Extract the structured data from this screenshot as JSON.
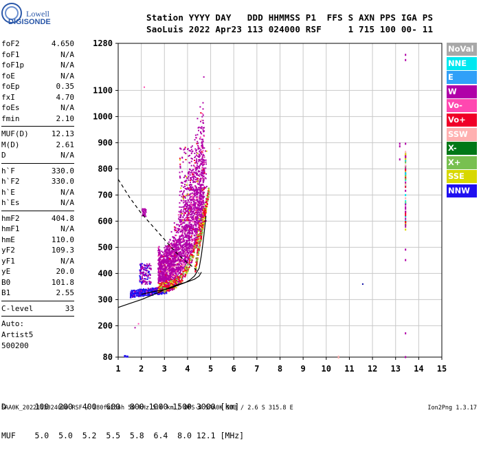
{
  "logo": {
    "line1": "Lowell",
    "line2": "DIGISONDE"
  },
  "header": {
    "line1": "Station YYYY DAY   DDD HHMMSS P1  FFS S AXN PPS IGA PS",
    "line2": "SaoLuis 2022 Apr23 113 024000 RSF     1 715 100 00- 11"
  },
  "params": {
    "group1": [
      {
        "k": "foF2",
        "v": "4.650"
      },
      {
        "k": "foF1",
        "v": "N/A"
      },
      {
        "k": "foF1p",
        "v": "N/A"
      },
      {
        "k": "foE",
        "v": "N/A"
      },
      {
        "k": "foEp",
        "v": "0.35"
      },
      {
        "k": "fxI",
        "v": "4.70"
      },
      {
        "k": "foEs",
        "v": "N/A"
      },
      {
        "k": "fmin",
        "v": "2.10"
      }
    ],
    "group2": [
      {
        "k": "MUF(D)",
        "v": "12.13"
      },
      {
        "k": "M(D)",
        "v": "2.61"
      },
      {
        "k": "D",
        "v": "N/A"
      }
    ],
    "group3": [
      {
        "k": "h`F",
        "v": "330.0"
      },
      {
        "k": "h`F2",
        "v": "330.0"
      },
      {
        "k": "h`E",
        "v": "N/A"
      },
      {
        "k": "h`Es",
        "v": "N/A"
      }
    ],
    "group4": [
      {
        "k": "hmF2",
        "v": "404.8"
      },
      {
        "k": "hmF1",
        "v": "N/A"
      },
      {
        "k": "hmE",
        "v": "110.0"
      },
      {
        "k": "yF2",
        "v": "109.3"
      },
      {
        "k": "yF1",
        "v": "N/A"
      },
      {
        "k": "yE",
        "v": "20.0"
      },
      {
        "k": "B0",
        "v": "101.8"
      },
      {
        "k": "B1",
        "v": "2.55"
      }
    ],
    "group5": [
      {
        "k": "C-level",
        "v": "33"
      }
    ],
    "auto": [
      "Auto:",
      "Artist5",
      "500200"
    ]
  },
  "legend": [
    {
      "label": "NoVal",
      "color": "#a8a8a8"
    },
    {
      "label": "NNE",
      "color": "#00e8f0"
    },
    {
      "label": "E",
      "color": "#30a0f8"
    },
    {
      "label": "W",
      "color": "#b000a8"
    },
    {
      "label": "Vo-",
      "color": "#ff48b0"
    },
    {
      "label": "Vo+",
      "color": "#f00028"
    },
    {
      "label": "SSW",
      "color": "#ffb0b0"
    },
    {
      "label": "X-",
      "color": "#007818"
    },
    {
      "label": "X+",
      "color": "#78c050"
    },
    {
      "label": "SSE",
      "color": "#d8d800"
    },
    {
      "label": "NNW",
      "color": "#2010f0"
    }
  ],
  "footer": {
    "line1": "D      100  200  400  600  800 1000 1500 3000 [km]",
    "line2": "MUF    5.0  5.0  5.2  5.5  5.8  6.4  8.0 12.1 [MHz]",
    "credit": "SAA0K_2022113024000.RSF / 280fx256h 50 kHz 5.0 km / DPS-4 SAA0K 903 / 2.6 S 315.8 E",
    "version": "Ion2Png 1.3.17"
  },
  "chart_data": {
    "type": "scatter",
    "title": "",
    "xlabel": "",
    "ylabel": "",
    "xlim": [
      1,
      15
    ],
    "ylim": [
      80,
      1280
    ],
    "xticks": [
      1,
      2,
      3,
      4,
      5,
      6,
      7,
      8,
      9,
      10,
      11,
      12,
      13,
      14,
      15
    ],
    "yticks": [
      80,
      200,
      300,
      400,
      500,
      600,
      700,
      800,
      900,
      1000,
      1100,
      1280
    ],
    "grid": true,
    "legend_position": "right",
    "profile_curve": {
      "x": [
        1.0,
        1.5,
        2.0,
        2.5,
        3.0,
        3.5,
        4.0,
        4.3,
        4.5,
        4.6
      ],
      "y": [
        270,
        285,
        300,
        318,
        338,
        355,
        368,
        378,
        390,
        405
      ]
    },
    "muf_curve": {
      "x": [
        1.0,
        1.5,
        2.0,
        2.5,
        3.0,
        3.5,
        4.0,
        4.3,
        4.5
      ],
      "y": [
        760,
        690,
        630,
        580,
        530,
        480,
        440,
        420,
        400
      ]
    },
    "trace_f": {
      "x": [
        2.0,
        2.5,
        3.0,
        3.3,
        3.6,
        3.9,
        4.1,
        4.3,
        4.5,
        4.6,
        4.7,
        4.8
      ],
      "y": [
        320,
        330,
        338,
        345,
        355,
        365,
        375,
        390,
        420,
        470,
        540,
        620
      ]
    }
  }
}
